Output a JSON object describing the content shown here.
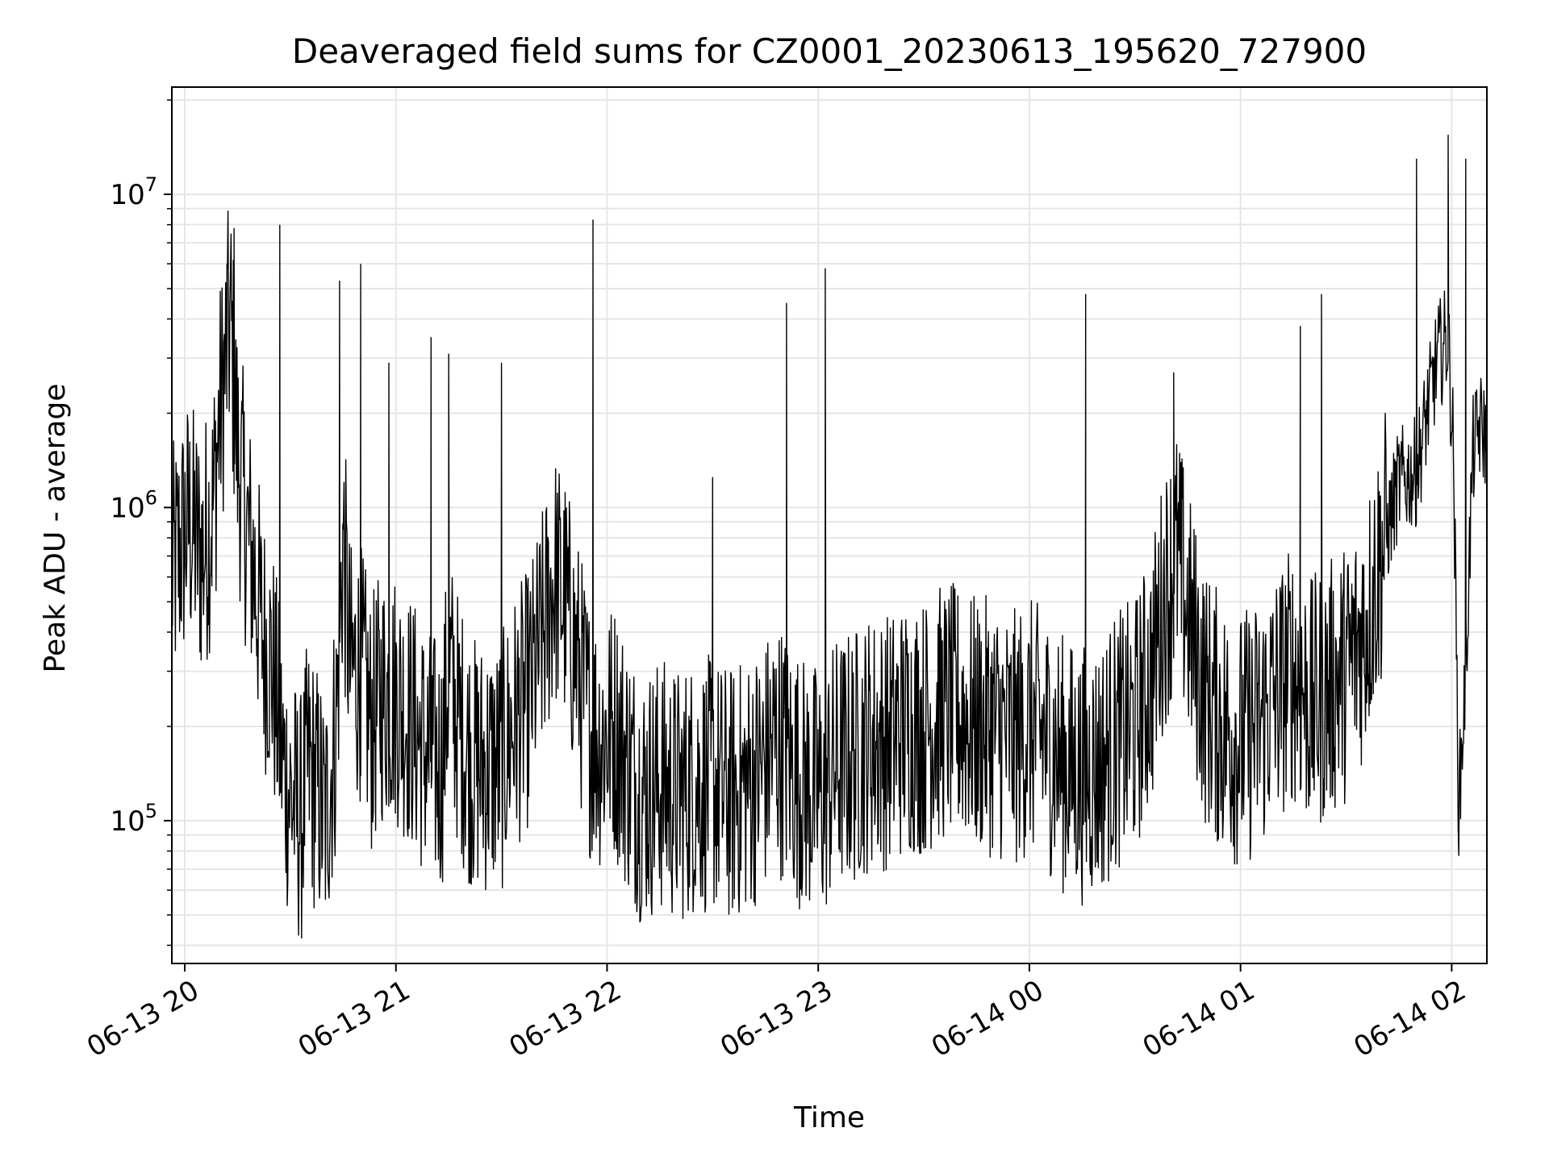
{
  "chart_data": {
    "type": "line",
    "title": "Deaveraged field sums for CZ0001_20230613_195620_727900",
    "xlabel": "Time",
    "ylabel": "Peak ADU - average",
    "x_scale": "time",
    "y_scale": "log",
    "xlim": [
      "2023-06-13T19:56:20",
      "2023-06-14T02:10:00"
    ],
    "ylim": [
      35000,
      22000000
    ],
    "grid": true,
    "colors": {
      "line": "#000000",
      "grid": "#e6e6e6",
      "frame": "#000000"
    },
    "x_ticks": [
      {
        "t": "2023-06-13T20:00:00",
        "label": "06-13 20"
      },
      {
        "t": "2023-06-13T21:00:00",
        "label": "06-13 21"
      },
      {
        "t": "2023-06-13T22:00:00",
        "label": "06-13 22"
      },
      {
        "t": "2023-06-13T23:00:00",
        "label": "06-13 23"
      },
      {
        "t": "2023-06-14T00:00:00",
        "label": "06-14 00"
      },
      {
        "t": "2023-06-14T01:00:00",
        "label": "06-14 01"
      },
      {
        "t": "2023-06-14T02:00:00",
        "label": "06-14 02"
      }
    ],
    "y_ticks": [
      {
        "v": 100000,
        "base": "10",
        "exp": "5"
      },
      {
        "v": 1000000,
        "base": "10",
        "exp": "6"
      },
      {
        "v": 10000000,
        "base": "10",
        "exp": "7"
      }
    ],
    "series": [
      {
        "x": [
          "2023-06-13T19:56:20",
          "2023-06-13T20:01:00",
          "2023-06-13T20:05:00",
          "2023-06-13T20:08:00",
          "2023-06-13T20:10:00",
          "2023-06-13T20:13:00",
          "2023-06-13T20:15:00",
          "2023-06-13T20:18:00",
          "2023-06-13T20:20:00",
          "2023-06-13T20:22:00",
          "2023-06-13T20:25:00",
          "2023-06-13T20:28:00",
          "2023-06-13T20:30:00",
          "2023-06-13T20:33:00",
          "2023-06-13T20:35:00",
          "2023-06-13T20:38:00",
          "2023-06-13T20:40:00",
          "2023-06-13T20:43:00",
          "2023-06-13T20:45:00",
          "2023-06-13T20:47:00",
          "2023-06-13T20:50:00",
          "2023-06-13T20:53:00",
          "2023-06-13T20:56:00",
          "2023-06-13T21:00:00",
          "2023-06-13T21:05:00",
          "2023-06-13T21:09:00",
          "2023-06-13T21:13:00",
          "2023-06-13T21:15:00",
          "2023-06-13T21:18:00",
          "2023-06-13T21:22:00",
          "2023-06-13T21:26:00",
          "2023-06-13T21:30:00",
          "2023-06-13T21:33:00",
          "2023-06-13T21:38:00",
          "2023-06-13T21:42:00",
          "2023-06-13T21:45:00",
          "2023-06-13T21:48:00",
          "2023-06-13T21:52:00",
          "2023-06-13T21:55:00",
          "2023-06-13T21:58:00",
          "2023-06-13T22:02:00",
          "2023-06-13T22:06:00",
          "2023-06-13T22:10:00",
          "2023-06-13T22:15:00",
          "2023-06-13T22:20:00",
          "2023-06-13T22:25:00",
          "2023-06-13T22:30:00",
          "2023-06-13T22:35:00",
          "2023-06-13T22:40:00",
          "2023-06-13T22:45:00",
          "2023-06-13T22:48:00",
          "2023-06-13T22:52:00",
          "2023-06-13T22:56:00",
          "2023-06-13T23:01:00",
          "2023-06-13T23:05:00",
          "2023-06-13T23:10:00",
          "2023-06-13T23:15:00",
          "2023-06-13T23:20:00",
          "2023-06-13T23:25:00",
          "2023-06-13T23:30:00",
          "2023-06-13T23:35:00",
          "2023-06-13T23:40:00",
          "2023-06-13T23:45:00",
          "2023-06-13T23:50:00",
          "2023-06-13T23:55:00",
          "2023-06-14T00:00:00",
          "2023-06-14T00:05:00",
          "2023-06-14T00:10:00",
          "2023-06-14T00:15:00",
          "2023-06-14T00:20:00",
          "2023-06-14T00:25:00",
          "2023-06-14T00:30:00",
          "2023-06-14T00:35:00",
          "2023-06-14T00:38:00",
          "2023-06-14T00:42:00",
          "2023-06-14T00:46:00",
          "2023-06-14T00:50:00",
          "2023-06-14T00:55:00",
          "2023-06-14T01:00:00",
          "2023-06-14T01:05:00",
          "2023-06-14T01:10:00",
          "2023-06-14T01:15:00",
          "2023-06-14T01:20:00",
          "2023-06-14T01:25:00",
          "2023-06-14T01:30:00",
          "2023-06-14T01:35:00",
          "2023-06-14T01:40:00",
          "2023-06-14T01:45:00",
          "2023-06-14T01:50:00",
          "2023-06-14T01:53:00",
          "2023-06-14T01:56:00",
          "2023-06-14T01:59:00",
          "2023-06-14T02:00:30",
          "2023-06-14T02:02:00",
          "2023-06-14T02:04:00",
          "2023-06-14T02:06:00",
          "2023-06-14T02:08:00",
          "2023-06-14T02:10:00"
        ],
        "y": [
          600000,
          900000,
          700000,
          1000000,
          2000000,
          4000000,
          1500000,
          800000,
          600000,
          400000,
          300000,
          150000,
          120000,
          100000,
          150000,
          120000,
          100000,
          200000,
          800000,
          300000,
          300000,
          200000,
          250000,
          250000,
          200000,
          160000,
          150000,
          300000,
          200000,
          150000,
          150000,
          150000,
          200000,
          250000,
          400000,
          600000,
          500000,
          300000,
          200000,
          180000,
          200000,
          150000,
          120000,
          130000,
          120000,
          130000,
          130000,
          120000,
          130000,
          150000,
          180000,
          150000,
          130000,
          120000,
          150000,
          160000,
          180000,
          180000,
          200000,
          200000,
          220000,
          220000,
          200000,
          200000,
          180000,
          200000,
          180000,
          150000,
          140000,
          150000,
          180000,
          200000,
          300000,
          500000,
          700000,
          400000,
          250000,
          200000,
          180000,
          200000,
          250000,
          300000,
          230000,
          260000,
          300000,
          400000,
          700000,
          1200000,
          1300000,
          2000000,
          3000000,
          3500000,
          1500000,
          110000,
          300000,
          1500000,
          1800000,
          1700000
        ],
        "spikes": [
          {
            "t": "2023-06-13T20:12:00",
            "v": 6000000
          },
          {
            "t": "2023-06-13T20:14:00",
            "v": 7800000
          },
          {
            "t": "2023-06-13T20:27:00",
            "v": 8000000
          },
          {
            "t": "2023-06-13T20:44:00",
            "v": 5300000
          },
          {
            "t": "2023-06-13T20:50:00",
            "v": 6000000
          },
          {
            "t": "2023-06-13T20:58:00",
            "v": 2900000
          },
          {
            "t": "2023-06-13T21:10:00",
            "v": 3500000
          },
          {
            "t": "2023-06-13T21:15:00",
            "v": 3100000
          },
          {
            "t": "2023-06-13T21:30:00",
            "v": 2900000
          },
          {
            "t": "2023-06-13T21:56:00",
            "v": 8300000
          },
          {
            "t": "2023-06-13T22:30:00",
            "v": 1250000
          },
          {
            "t": "2023-06-13T22:51:00",
            "v": 4500000
          },
          {
            "t": "2023-06-13T23:02:00",
            "v": 5800000
          },
          {
            "t": "2023-06-14T00:16:00",
            "v": 4800000
          },
          {
            "t": "2023-06-14T00:41:00",
            "v": 2700000
          },
          {
            "t": "2023-06-14T01:17:00",
            "v": 3800000
          },
          {
            "t": "2023-06-14T01:23:00",
            "v": 4800000
          },
          {
            "t": "2023-06-14T01:50:00",
            "v": 13000000
          },
          {
            "t": "2023-06-14T01:59:00",
            "v": 15500000
          },
          {
            "t": "2023-06-14T02:04:00",
            "v": 13000000
          }
        ]
      }
    ]
  }
}
